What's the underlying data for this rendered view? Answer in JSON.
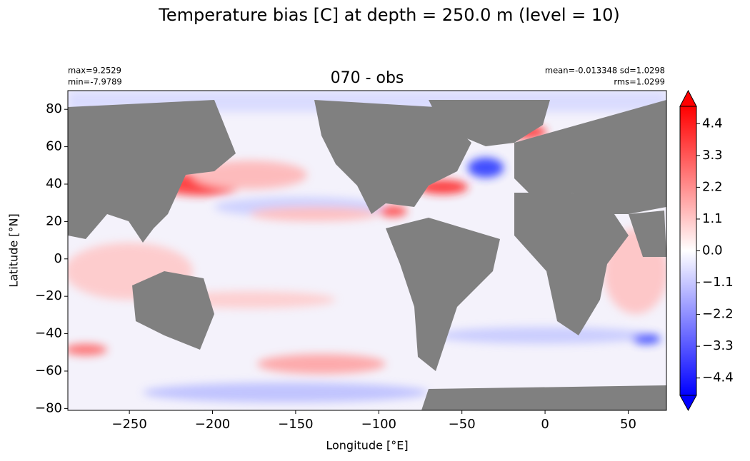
{
  "chart_data": {
    "type": "heatmap",
    "title": "Temperature bias [C] at depth = 250.0 m (level = 10)",
    "axes_title": "070 - obs",
    "annotations": [
      "max=9.2529",
      "min=-7.9789",
      "mean=-0.013348 sd=1.0298",
      "rms=1.0299"
    ],
    "x_label": "Longitude [°E]",
    "y_label": "Latitude [°N]",
    "xlim": [
      -287,
      73
    ],
    "xticks": [
      {
        "value": -250,
        "label": "−250"
      },
      {
        "value": -200,
        "label": "−200"
      },
      {
        "value": -150,
        "label": "−150"
      },
      {
        "value": -100,
        "label": "−100"
      },
      {
        "value": -50,
        "label": "−50"
      },
      0,
      50
    ],
    "ylim": [
      -81,
      90
    ],
    "yticks": [
      {
        "value": -80,
        "label": "−80"
      },
      {
        "value": -60,
        "label": "−60"
      },
      {
        "value": -40,
        "label": "−40"
      },
      {
        "value": -20,
        "label": "−20"
      },
      0,
      20,
      40,
      60,
      80
    ],
    "land_color": "#808080",
    "colorbar": {
      "lim": [
        -5,
        5
      ],
      "colors": [
        "#0000ff",
        "#ffffff",
        "#ff0000"
      ],
      "extend": "both",
      "ticks": [
        {
          "value": -4.4,
          "label": "−4.4"
        },
        {
          "value": -3.3,
          "label": "−3.3"
        },
        {
          "value": -2.2,
          "label": "−2.2"
        },
        {
          "value": -1.1,
          "label": "−1.1"
        },
        {
          "value": 0,
          "label": "0.0"
        },
        1.1,
        2.2,
        3.3,
        4.4
      ]
    }
  }
}
